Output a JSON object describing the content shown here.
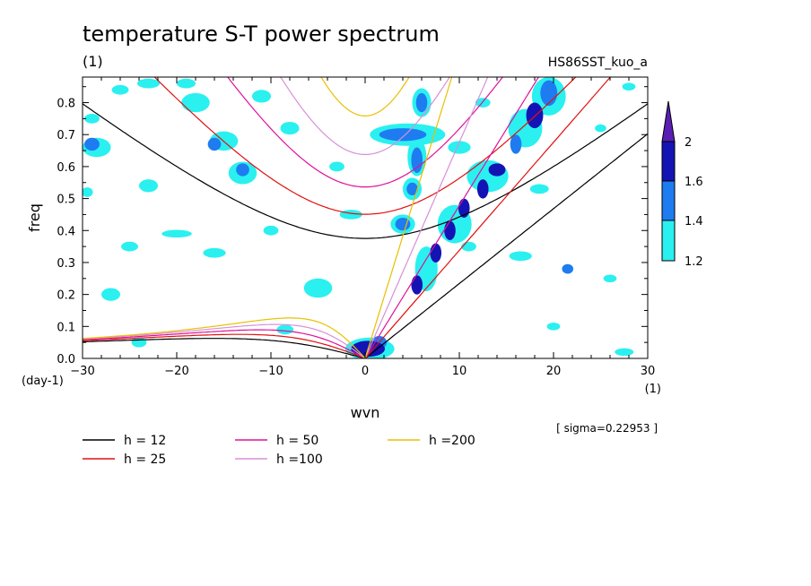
{
  "title": "temperature S-T power spectrum",
  "subtitle_left": "(1)",
  "subtitle_right": "HS86SST_kuo_a",
  "sigma_note": "[ sigma=0.22953 ]",
  "chart_data": {
    "type": "heatmap",
    "xlabel": "wvn",
    "ylabel": "freq",
    "x_unit": "(1)",
    "y_unit": "(day-1)",
    "xlim": [
      -30,
      30
    ],
    "ylim": [
      0,
      0.88
    ],
    "x_ticks": [
      -30,
      -20,
      -10,
      0,
      10,
      20,
      30
    ],
    "x_tick_labels": [
      "−30",
      "−20",
      "−10",
      "0",
      "10",
      "20",
      "30"
    ],
    "y_ticks": [
      0,
      0.1,
      0.2,
      0.3,
      0.4,
      0.5,
      0.6,
      0.7,
      0.8
    ],
    "y_tick_labels": [
      "0.0",
      "0.1",
      "0.2",
      "0.3",
      "0.4",
      "0.5",
      "0.6",
      "0.7",
      "0.8"
    ],
    "colorbar": {
      "levels": [
        1.2,
        1.4,
        1.6,
        2
      ],
      "labels": [
        "1.2",
        "1.4",
        "1.6",
        "2"
      ],
      "colors": [
        "#2af0f0",
        "#1e7cf0",
        "#1414b4",
        "#5a1eb4"
      ]
    },
    "dispersion_curves": [
      {
        "h": 12,
        "label": "h = 12",
        "color": "#000000"
      },
      {
        "h": 25,
        "label": "h = 25",
        "color": "#e01010"
      },
      {
        "h": 50,
        "label": "h = 50",
        "color": "#e0109a"
      },
      {
        "h": 100,
        "label": "h =100",
        "color": "#d890d8"
      },
      {
        "h": 200,
        "label": "h =200",
        "color": "#e8c000"
      }
    ],
    "power_regions": [
      {
        "x": 0.3,
        "y": 0.03,
        "rx": 1.8,
        "ry": 0.025,
        "level": 3
      },
      {
        "x": 1.5,
        "y": 0.05,
        "rx": 0.8,
        "ry": 0.02,
        "level": 2
      },
      {
        "x": 5.5,
        "y": 0.23,
        "rx": 0.6,
        "ry": 0.03,
        "level": 3
      },
      {
        "x": 7.5,
        "y": 0.33,
        "rx": 0.6,
        "ry": 0.03,
        "level": 3
      },
      {
        "x": 9.0,
        "y": 0.4,
        "rx": 0.6,
        "ry": 0.03,
        "level": 3
      },
      {
        "x": 10.5,
        "y": 0.47,
        "rx": 0.6,
        "ry": 0.03,
        "level": 3
      },
      {
        "x": 12.5,
        "y": 0.53,
        "rx": 0.6,
        "ry": 0.03,
        "level": 3
      },
      {
        "x": 14.0,
        "y": 0.59,
        "rx": 0.9,
        "ry": 0.02,
        "level": 3
      },
      {
        "x": 16.0,
        "y": 0.67,
        "rx": 0.6,
        "ry": 0.03,
        "level": 2
      },
      {
        "x": 18.0,
        "y": 0.76,
        "rx": 0.9,
        "ry": 0.04,
        "level": 3
      },
      {
        "x": 19.5,
        "y": 0.83,
        "rx": 0.9,
        "ry": 0.04,
        "level": 2
      },
      {
        "x": 4.0,
        "y": 0.7,
        "rx": 2.5,
        "ry": 0.02,
        "level": 2
      },
      {
        "x": 4.0,
        "y": 0.42,
        "rx": 0.8,
        "ry": 0.02,
        "level": 2
      },
      {
        "x": 5.0,
        "y": 0.53,
        "rx": 0.6,
        "ry": 0.02,
        "level": 2
      },
      {
        "x": 5.5,
        "y": 0.62,
        "rx": 0.6,
        "ry": 0.04,
        "level": 2
      },
      {
        "x": 6.0,
        "y": 0.8,
        "rx": 0.6,
        "ry": 0.03,
        "level": 2
      },
      {
        "x": -13.0,
        "y": 0.59,
        "rx": 0.7,
        "ry": 0.02,
        "level": 2
      },
      {
        "x": -29.0,
        "y": 0.67,
        "rx": 0.8,
        "ry": 0.02,
        "level": 2
      },
      {
        "x": -16.0,
        "y": 0.67,
        "rx": 0.7,
        "ry": 0.02,
        "level": 2
      },
      {
        "x": 21.5,
        "y": 0.28,
        "rx": 0.6,
        "ry": 0.015,
        "level": 2
      },
      {
        "x": -24.0,
        "y": 0.05,
        "rx": 0.8,
        "ry": 0.015,
        "level": 1
      },
      {
        "x": -28.5,
        "y": 0.66,
        "rx": 1.5,
        "ry": 0.03,
        "level": 1
      },
      {
        "x": -15.0,
        "y": 0.68,
        "rx": 1.5,
        "ry": 0.03,
        "level": 1
      },
      {
        "x": -13.0,
        "y": 0.58,
        "rx": 1.5,
        "ry": 0.035,
        "level": 1
      },
      {
        "x": -11.0,
        "y": 0.82,
        "rx": 1.0,
        "ry": 0.02,
        "level": 1
      },
      {
        "x": -18.0,
        "y": 0.8,
        "rx": 1.5,
        "ry": 0.03,
        "level": 1
      },
      {
        "x": -23.0,
        "y": 0.86,
        "rx": 1.2,
        "ry": 0.015,
        "level": 1
      },
      {
        "x": -19.0,
        "y": 0.86,
        "rx": 1.0,
        "ry": 0.015,
        "level": 1
      },
      {
        "x": -26.0,
        "y": 0.84,
        "rx": 0.9,
        "ry": 0.015,
        "level": 1
      },
      {
        "x": -20.0,
        "y": 0.39,
        "rx": 1.6,
        "ry": 0.012,
        "level": 1
      },
      {
        "x": -16.0,
        "y": 0.33,
        "rx": 1.2,
        "ry": 0.015,
        "level": 1
      },
      {
        "x": -25.0,
        "y": 0.35,
        "rx": 0.9,
        "ry": 0.015,
        "level": 1
      },
      {
        "x": -27.0,
        "y": 0.2,
        "rx": 1.0,
        "ry": 0.02,
        "level": 1
      },
      {
        "x": -5.0,
        "y": 0.22,
        "rx": 1.5,
        "ry": 0.03,
        "level": 1
      },
      {
        "x": -8.5,
        "y": 0.09,
        "rx": 0.9,
        "ry": 0.015,
        "level": 1
      },
      {
        "x": -10.0,
        "y": 0.4,
        "rx": 0.8,
        "ry": 0.015,
        "level": 1
      },
      {
        "x": -1.5,
        "y": 0.45,
        "rx": 1.2,
        "ry": 0.015,
        "level": 1
      },
      {
        "x": -23.0,
        "y": 0.54,
        "rx": 1.0,
        "ry": 0.02,
        "level": 1
      },
      {
        "x": -29.5,
        "y": 0.52,
        "rx": 0.6,
        "ry": 0.015,
        "level": 1
      },
      {
        "x": -29.0,
        "y": 0.75,
        "rx": 0.8,
        "ry": 0.015,
        "level": 1
      },
      {
        "x": -8.0,
        "y": 0.72,
        "rx": 1.0,
        "ry": 0.02,
        "level": 1
      },
      {
        "x": -3.0,
        "y": 0.6,
        "rx": 0.8,
        "ry": 0.015,
        "level": 1
      },
      {
        "x": 4.5,
        "y": 0.7,
        "rx": 4.0,
        "ry": 0.035,
        "level": 1
      },
      {
        "x": 5.5,
        "y": 0.63,
        "rx": 1.0,
        "ry": 0.06,
        "level": 1
      },
      {
        "x": 5.0,
        "y": 0.53,
        "rx": 1.0,
        "ry": 0.035,
        "level": 1
      },
      {
        "x": 6.0,
        "y": 0.8,
        "rx": 1.0,
        "ry": 0.045,
        "level": 1
      },
      {
        "x": 4.0,
        "y": 0.42,
        "rx": 1.3,
        "ry": 0.03,
        "level": 1
      },
      {
        "x": 0.5,
        "y": 0.03,
        "rx": 2.6,
        "ry": 0.035,
        "level": 1
      },
      {
        "x": 6.5,
        "y": 0.28,
        "rx": 1.2,
        "ry": 0.07,
        "level": 1
      },
      {
        "x": 9.5,
        "y": 0.42,
        "rx": 1.8,
        "ry": 0.06,
        "level": 1
      },
      {
        "x": 13.0,
        "y": 0.57,
        "rx": 2.2,
        "ry": 0.05,
        "level": 1
      },
      {
        "x": 17.0,
        "y": 0.72,
        "rx": 1.8,
        "ry": 0.06,
        "level": 1
      },
      {
        "x": 19.5,
        "y": 0.82,
        "rx": 1.8,
        "ry": 0.06,
        "level": 1
      },
      {
        "x": 10.0,
        "y": 0.66,
        "rx": 1.2,
        "ry": 0.02,
        "level": 1
      },
      {
        "x": 12.5,
        "y": 0.8,
        "rx": 0.8,
        "ry": 0.015,
        "level": 1
      },
      {
        "x": 16.5,
        "y": 0.32,
        "rx": 1.2,
        "ry": 0.015,
        "level": 1
      },
      {
        "x": 18.5,
        "y": 0.53,
        "rx": 1.0,
        "ry": 0.015,
        "level": 1
      },
      {
        "x": 11.0,
        "y": 0.35,
        "rx": 0.8,
        "ry": 0.015,
        "level": 1
      },
      {
        "x": 26.0,
        "y": 0.25,
        "rx": 0.7,
        "ry": 0.012,
        "level": 1
      },
      {
        "x": 20.0,
        "y": 0.1,
        "rx": 0.7,
        "ry": 0.012,
        "level": 1
      },
      {
        "x": 27.5,
        "y": 0.02,
        "rx": 1.0,
        "ry": 0.012,
        "level": 1
      },
      {
        "x": 25.0,
        "y": 0.72,
        "rx": 0.6,
        "ry": 0.012,
        "level": 1
      },
      {
        "x": 28.0,
        "y": 0.85,
        "rx": 0.7,
        "ry": 0.012,
        "level": 1
      }
    ]
  }
}
